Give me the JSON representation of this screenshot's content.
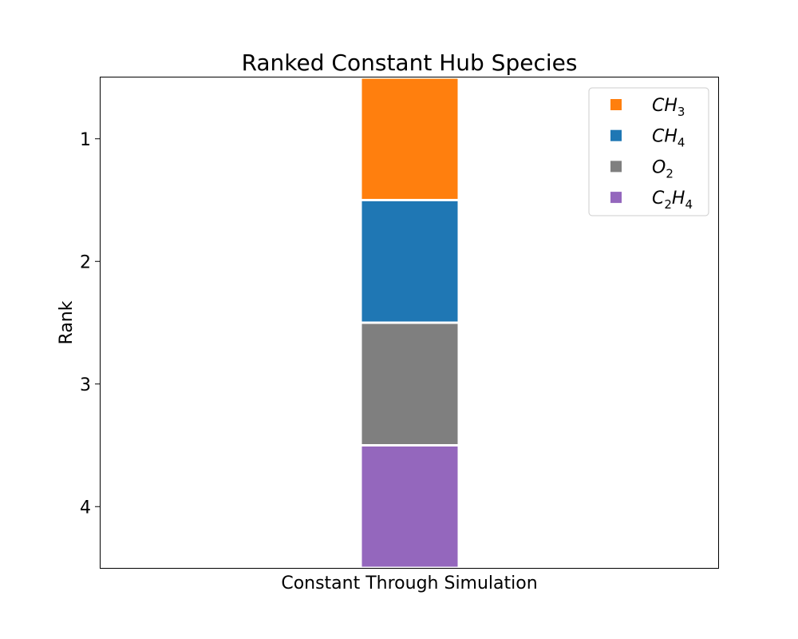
{
  "chart_data": {
    "type": "bar",
    "title": "Ranked Constant Hub Species",
    "xlabel": "Constant Through Simulation",
    "ylabel": "Rank",
    "y_ticks": [
      "1",
      "2",
      "3",
      "4"
    ],
    "ylim": [
      4.5,
      0.5
    ],
    "y_inverted": true,
    "grid": false,
    "legend_position": "top-right",
    "bars": [
      {
        "rank": 1,
        "species": "CH3",
        "base": "CH",
        "sub": "3",
        "color": "#ff7f0e"
      },
      {
        "rank": 2,
        "species": "CH4",
        "base": "CH",
        "sub": "4",
        "color": "#1f77b4"
      },
      {
        "rank": 3,
        "species": "O2",
        "base": "O",
        "sub": "2",
        "color": "#7f7f7f"
      },
      {
        "rank": 4,
        "species": "C2H4",
        "base": "C",
        "sub": "2",
        "base2": "H",
        "sub2": "4",
        "color": "#9467bd"
      }
    ]
  }
}
